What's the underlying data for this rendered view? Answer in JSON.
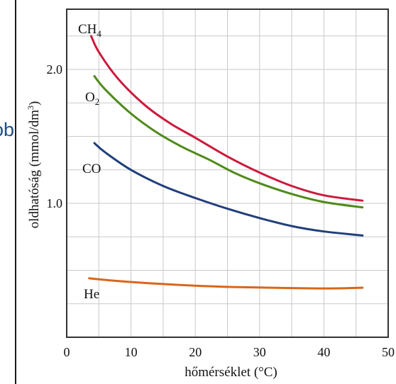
{
  "page": {
    "left_fragment_text": "ob"
  },
  "chart_data": {
    "type": "line",
    "title": "",
    "xlabel": "hőmérséklet (°C)",
    "ylabel_main": "oldhatóság (mmol/dm",
    "ylabel_sup": "3",
    "ylabel_close": ")",
    "xlim": [
      0,
      50
    ],
    "ylim": [
      0.0,
      2.45
    ],
    "x_ticks": [
      0,
      10,
      20,
      30,
      40,
      50
    ],
    "x_tick_labels": [
      "0",
      "10",
      "20",
      "30",
      "40",
      "50"
    ],
    "y_ticks": [
      1.0,
      2.0
    ],
    "y_tick_labels": [
      "1.0",
      "2.0"
    ],
    "grid": true,
    "series": [
      {
        "name": "CH4",
        "label_main": "CH",
        "label_sub": "4",
        "color": "#cc1a3c",
        "x": [
          3.8,
          5,
          8,
          12,
          16,
          20,
          25,
          30,
          35,
          40,
          46
        ],
        "y": [
          2.25,
          2.13,
          1.93,
          1.74,
          1.6,
          1.49,
          1.35,
          1.23,
          1.13,
          1.06,
          1.02
        ]
      },
      {
        "name": "O2",
        "label_main": "O",
        "label_sub": "2",
        "color": "#4f8a1a",
        "x": [
          4.3,
          6,
          10,
          14,
          18,
          22,
          26,
          30,
          35,
          40,
          46
        ],
        "y": [
          1.95,
          1.85,
          1.67,
          1.53,
          1.42,
          1.33,
          1.23,
          1.15,
          1.07,
          1.01,
          0.97
        ]
      },
      {
        "name": "CO",
        "label_main": "CO",
        "label_sub": "",
        "color": "#213f7c",
        "x": [
          4.3,
          6,
          10,
          15,
          20,
          25,
          30,
          35,
          40,
          46
        ],
        "y": [
          1.45,
          1.38,
          1.25,
          1.13,
          1.04,
          0.96,
          0.89,
          0.83,
          0.79,
          0.76
        ]
      },
      {
        "name": "He",
        "label_main": "He",
        "label_sub": "",
        "color": "#d9661a",
        "x": [
          3.5,
          8,
          14,
          20,
          26,
          32,
          38,
          42,
          46
        ],
        "y": [
          0.44,
          0.42,
          0.4,
          0.385,
          0.375,
          0.37,
          0.365,
          0.365,
          0.37
        ]
      }
    ]
  }
}
